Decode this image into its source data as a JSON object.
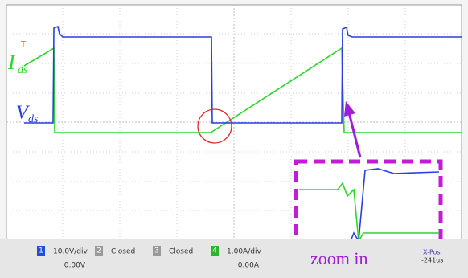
{
  "labels": {
    "trigger": "T",
    "ids": {
      "main": "I",
      "sub": "ds"
    },
    "vds": {
      "main": "V",
      "sub": "ds"
    },
    "zoom": "zoom in"
  },
  "channels": [
    {
      "number": "1",
      "scale": "10.0V/div",
      "offset": "0.00V"
    },
    {
      "number": "2",
      "scale": "Closed"
    },
    {
      "number": "3",
      "scale": "Closed"
    },
    {
      "number": "4",
      "scale": "1.00A/div",
      "offset": "0.00A"
    }
  ],
  "timebase": {
    "label": "X-Pos",
    "value": "-241us"
  }
}
